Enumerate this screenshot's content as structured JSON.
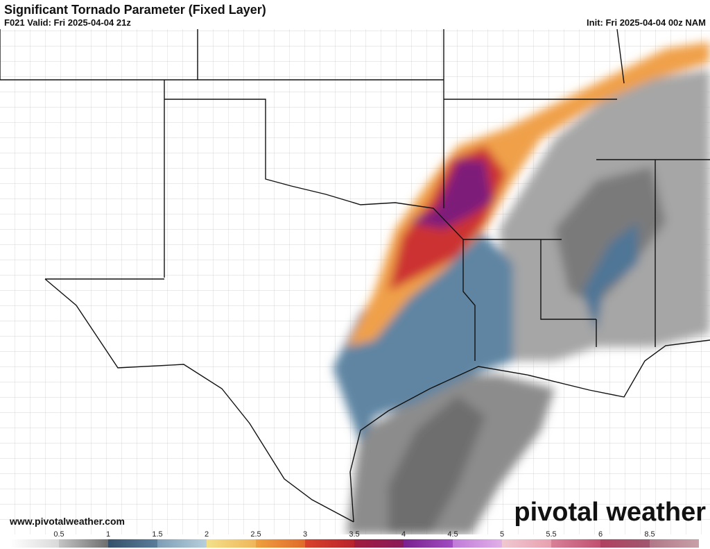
{
  "header": {
    "title": "Significant Tornado Parameter (Fixed Layer)",
    "valid": "F021 Valid: Fri 2025-04-04 21z",
    "init": "Init: Fri 2025-04-04 00z NAM"
  },
  "footer": {
    "website": "www.pivotalweather.com",
    "logo": "pivotal weather"
  },
  "colorbar": {
    "ticks": [
      0.5,
      1,
      1.5,
      2,
      2.5,
      3,
      3.5,
      4,
      4.5,
      5,
      5.5,
      6,
      8.5
    ],
    "colors": [
      [
        "#ffffff",
        "#d9d9d9"
      ],
      [
        "#c4c4c4",
        "#6e6e6e"
      ],
      [
        "#35506b",
        "#5b7d99"
      ],
      [
        "#7e9db5",
        "#b7cfdc"
      ],
      [
        "#f2e08a",
        "#f0b65a"
      ],
      [
        "#eea040",
        "#e06a2a"
      ],
      [
        "#d8422a",
        "#b8222e"
      ],
      [
        "#a01c3e",
        "#8a1a5a"
      ],
      [
        "#7a2090",
        "#a04cc0"
      ],
      [
        "#c07ad8",
        "#e0b0e8"
      ],
      [
        "#f0c8d0",
        "#e8a0b0"
      ],
      [
        "#d88098",
        "#c05070"
      ],
      [
        "#b04060",
        "#a05870"
      ],
      [
        "#b07888",
        "#c8a0a8"
      ]
    ]
  }
}
